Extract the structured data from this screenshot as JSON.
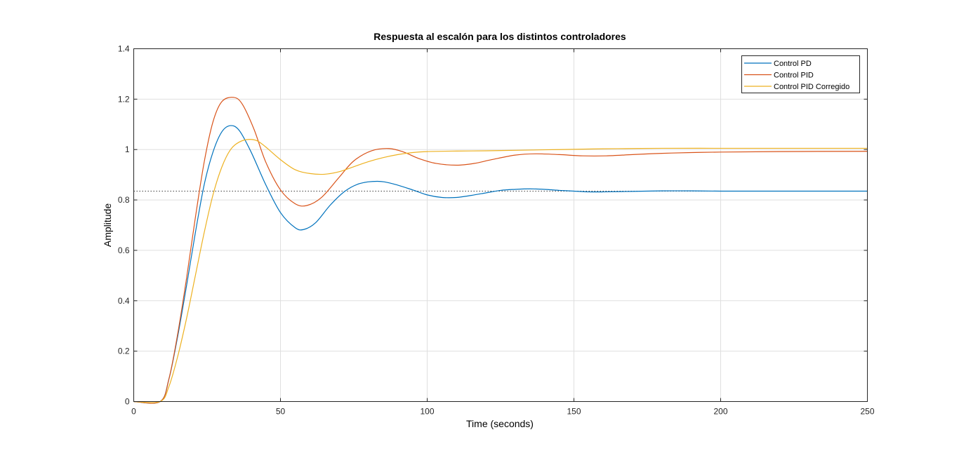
{
  "chart_data": {
    "type": "line",
    "title": "Respuesta al escalón para los distintos controladores",
    "xlabel": "Time (seconds)",
    "ylabel": "Amplitude",
    "xlim": [
      0,
      250
    ],
    "ylim": [
      0,
      1.4
    ],
    "xticks": [
      0,
      50,
      100,
      150,
      200,
      250
    ],
    "yticks": [
      0,
      0.2,
      0.4,
      0.6,
      0.8,
      1,
      1.2,
      1.4
    ],
    "xtick_labels": [
      "0",
      "50",
      "100",
      "150",
      "200",
      "250"
    ],
    "ytick_labels": [
      "0",
      "0.2",
      "0.4",
      "0.6",
      "0.8",
      "1",
      "1.2",
      "1.4"
    ],
    "grid": true,
    "legend_position": "top-right",
    "reference_line": {
      "y": 0.835,
      "style": "dotted",
      "color": "#000000"
    },
    "series": [
      {
        "name": "Control PD",
        "color": "#0072BD",
        "x": [
          0,
          9,
          12,
          15,
          18,
          21,
          24,
          27,
          30,
          33,
          36,
          40,
          45,
          50,
          55,
          58,
          62,
          67,
          72,
          77,
          83,
          88,
          95,
          100,
          105,
          110,
          115,
          120,
          125,
          130,
          135,
          140,
          145,
          150,
          155,
          160,
          170,
          180,
          190,
          200,
          220,
          250
        ],
        "y": [
          0,
          0,
          0.09,
          0.26,
          0.46,
          0.67,
          0.86,
          0.99,
          1.07,
          1.095,
          1.075,
          0.99,
          0.86,
          0.75,
          0.69,
          0.683,
          0.71,
          0.78,
          0.835,
          0.865,
          0.874,
          0.865,
          0.84,
          0.82,
          0.81,
          0.81,
          0.818,
          0.828,
          0.838,
          0.842,
          0.844,
          0.842,
          0.838,
          0.835,
          0.832,
          0.832,
          0.834,
          0.836,
          0.836,
          0.835,
          0.835,
          0.835
        ]
      },
      {
        "name": "Control PID",
        "color": "#D95319",
        "x": [
          0,
          9,
          12,
          15,
          18,
          21,
          24,
          27,
          30,
          34,
          37,
          41,
          45,
          50,
          55,
          59,
          64,
          70,
          75,
          81,
          87,
          92,
          97,
          103,
          110,
          116,
          122,
          130,
          137,
          145,
          153,
          161,
          170,
          180,
          190,
          200,
          220,
          250
        ],
        "y": [
          0,
          0,
          0.09,
          0.27,
          0.49,
          0.73,
          0.95,
          1.11,
          1.19,
          1.207,
          1.18,
          1.08,
          0.95,
          0.84,
          0.785,
          0.778,
          0.81,
          0.89,
          0.955,
          0.995,
          1.004,
          0.99,
          0.965,
          0.945,
          0.938,
          0.945,
          0.96,
          0.978,
          0.983,
          0.98,
          0.975,
          0.975,
          0.98,
          0.985,
          0.988,
          0.99,
          0.992,
          0.993
        ]
      },
      {
        "name": "Control PID Corregido",
        "color": "#EDB120",
        "x": [
          0,
          9,
          12,
          15,
          18,
          21,
          24,
          27,
          30,
          33,
          36,
          39,
          42,
          45,
          50,
          55,
          60,
          65,
          70,
          75,
          80,
          85,
          90,
          95,
          100,
          110,
          120,
          130,
          140,
          150,
          160,
          170,
          180,
          200,
          220,
          250
        ],
        "y": [
          0,
          0,
          0.06,
          0.18,
          0.33,
          0.5,
          0.67,
          0.82,
          0.93,
          1.0,
          1.03,
          1.04,
          1.035,
          1.01,
          0.96,
          0.92,
          0.905,
          0.902,
          0.912,
          0.932,
          0.952,
          0.968,
          0.98,
          0.988,
          0.992,
          0.994,
          0.995,
          0.997,
          0.999,
          1.001,
          1.003,
          1.004,
          1.005,
          1.005,
          1.005,
          1.005
        ]
      }
    ]
  }
}
